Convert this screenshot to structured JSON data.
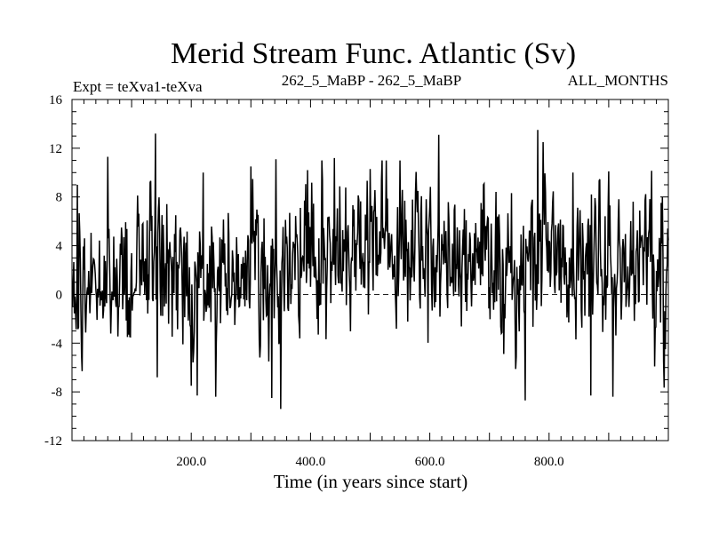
{
  "chart_data": {
    "type": "line",
    "title": "Merid Stream Func. Atlantic (Sv)",
    "left_label": "Expt = teXva1-teXva",
    "center_label": "262_5_MaBP - 262_5_MaBP",
    "right_label": "ALL_MONTHS",
    "xlabel": "Time (in years since start)",
    "ylabel": "",
    "xlim": [
      0,
      1000
    ],
    "ylim": [
      -12,
      16
    ],
    "xticks": [
      200,
      400,
      600,
      800
    ],
    "xtick_labels": [
      "200.0",
      "400.0",
      "600.0",
      "800.0"
    ],
    "yticks": [
      -12,
      -8,
      -4,
      0,
      4,
      8,
      12,
      16
    ],
    "ytick_labels": [
      "-12",
      "-8",
      "-4",
      "0",
      "4",
      "8",
      "12",
      "16"
    ],
    "reference_line": 0,
    "series": [
      {
        "name": "Merid Stream Func. Atlantic",
        "x_start": 1,
        "x_step": 1,
        "baseline": [
          [
            0,
            1.0
          ],
          [
            80,
            1.5
          ],
          [
            150,
            2.5
          ],
          [
            200,
            1.0
          ],
          [
            300,
            2.5
          ],
          [
            350,
            1.5
          ],
          [
            400,
            3.5
          ],
          [
            450,
            4.5
          ],
          [
            520,
            3.5
          ],
          [
            560,
            4.0
          ],
          [
            640,
            3.0
          ],
          [
            700,
            2.0
          ],
          [
            760,
            3.0
          ],
          [
            820,
            3.5
          ],
          [
            880,
            2.0
          ],
          [
            920,
            1.5
          ],
          [
            960,
            2.5
          ],
          [
            1000,
            2.5
          ]
        ],
        "noise_sd": 2.8,
        "seed": 262,
        "extremes": [
          [
            9,
            9.0
          ],
          [
            17,
            -6.3
          ],
          [
            60,
            11.3
          ],
          [
            93,
            -3.5
          ],
          [
            140,
            13.2
          ],
          [
            143,
            -6.8
          ],
          [
            200,
            -7.5
          ],
          [
            210,
            -8.3
          ],
          [
            220,
            10.0
          ],
          [
            241,
            -8.4
          ],
          [
            300,
            10.5
          ],
          [
            330,
            -5.5
          ],
          [
            335,
            -8.5
          ],
          [
            342,
            11.1
          ],
          [
            350,
            -9.4
          ],
          [
            395,
            10.2
          ],
          [
            440,
            11.2
          ],
          [
            520,
            11.0
          ],
          [
            580,
            8.5
          ],
          [
            615,
            13.1
          ],
          [
            690,
            9.0
          ],
          [
            760,
            -8.7
          ],
          [
            781,
            13.5
          ],
          [
            790,
            12.5
          ],
          [
            840,
            10.0
          ],
          [
            870,
            -8.3
          ],
          [
            900,
            10.1
          ],
          [
            907,
            -8.4
          ],
          [
            990,
            8.0
          ],
          [
            995,
            -4.5
          ]
        ]
      }
    ]
  }
}
